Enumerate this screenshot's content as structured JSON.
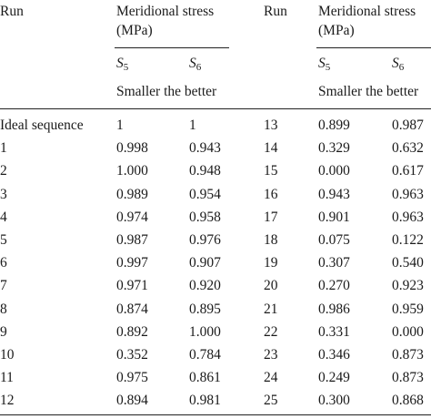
{
  "header": {
    "run": "Run",
    "group": "Meridional stress",
    "unit": "(MPa)",
    "s": "S",
    "sub5": "5",
    "sub6": "6",
    "criterion": "Smaller the better"
  },
  "rows": [
    [
      "Ideal sequence",
      "1",
      "1",
      "13",
      "0.899",
      "0.987"
    ],
    [
      "1",
      "0.998",
      "0.943",
      "14",
      "0.329",
      "0.632"
    ],
    [
      "2",
      "1.000",
      "0.948",
      "15",
      "0.000",
      "0.617"
    ],
    [
      "3",
      "0.989",
      "0.954",
      "16",
      "0.943",
      "0.963"
    ],
    [
      "4",
      "0.974",
      "0.958",
      "17",
      "0.901",
      "0.963"
    ],
    [
      "5",
      "0.987",
      "0.976",
      "18",
      "0.075",
      "0.122"
    ],
    [
      "6",
      "0.997",
      "0.907",
      "19",
      "0.307",
      "0.540"
    ],
    [
      "7",
      "0.971",
      "0.920",
      "20",
      "0.270",
      "0.923"
    ],
    [
      "8",
      "0.874",
      "0.895",
      "21",
      "0.986",
      "0.959"
    ],
    [
      "9",
      "0.892",
      "1.000",
      "22",
      "0.331",
      "0.000"
    ],
    [
      "10",
      "0.352",
      "0.784",
      "23",
      "0.346",
      "0.873"
    ],
    [
      "11",
      "0.975",
      "0.861",
      "24",
      "0.249",
      "0.873"
    ],
    [
      "12",
      "0.894",
      "0.981",
      "25",
      "0.300",
      "0.868"
    ]
  ]
}
